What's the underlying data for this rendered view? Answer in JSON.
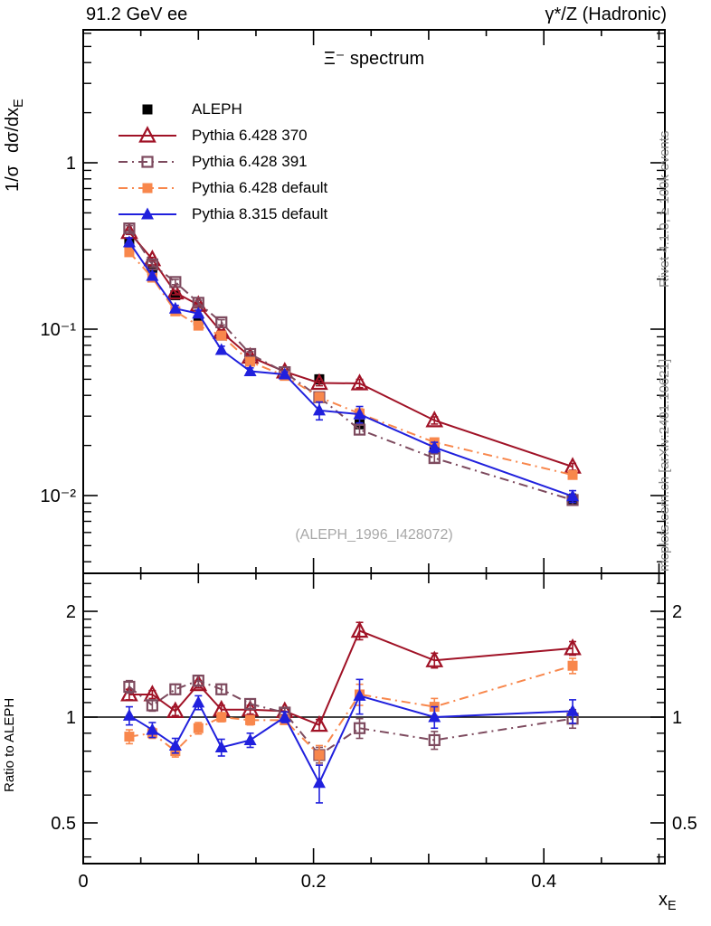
{
  "header": {
    "left": "91.2 GeV ee",
    "right": "γ*/Z (Hadronic)"
  },
  "side_texts": {
    "top_right": "Rivet 4.1.0, ≥ 100k events",
    "bottom_right": "mcplots.cern.ch [arXiv:2401.10621]"
  },
  "watermark": "(ALEPH_1996_I428072)",
  "chart_data": {
    "type": "line",
    "title": "Ξ⁻ spectrum",
    "ylabel": {
      "part1": "1/σ",
      "part2": "dσ/dx",
      "sub": "E"
    },
    "xlabel": {
      "part": "x",
      "sub": "E"
    },
    "ratio_label": "Ratio to ALEPH",
    "y_scale": "log",
    "x_range": [
      0,
      0.505
    ],
    "y_range_main": [
      0.0035,
      6.3
    ],
    "ratio_range": [
      0.42,
      2.6
    ],
    "grid": false,
    "legend_position": "top-left",
    "reference_line": 1,
    "x": [
      0.04,
      0.06,
      0.08,
      0.1,
      0.12,
      0.145,
      0.175,
      0.205,
      0.24,
      0.305,
      0.425
    ],
    "xticks": {
      "labels": [
        "0",
        "0.2",
        "0.4"
      ],
      "values": [
        0,
        0.2,
        0.4
      ],
      "minor_step": 0.05
    },
    "yticks_main": {
      "labels": [
        "1",
        "10⁻¹",
        "10⁻²"
      ],
      "values": [
        1,
        0.1,
        0.01
      ]
    },
    "yticks_ratio": {
      "labels": [
        "2",
        "1",
        "0.5"
      ],
      "values": [
        2,
        1,
        0.5
      ],
      "minor": [
        2.4,
        2.2,
        1.9,
        1.8,
        1.7,
        1.6,
        1.5,
        1.4,
        1.3,
        1.2,
        1.1,
        0.9,
        0.8,
        0.7,
        0.6,
        0.45,
        0.4
      ]
    },
    "series": [
      {
        "name": "ALEPH",
        "role": "data",
        "color": "#000000",
        "marker": "square-filled",
        "line": "none",
        "y": [
          0.33,
          0.227,
          0.16,
          0.113,
          0.0915,
          0.065,
          0.0535,
          0.05,
          0.0268,
          0.0195,
          0.0095
        ],
        "yerr": [
          0.015,
          0.01,
          0.008,
          0.006,
          0.005,
          0.0035,
          0.003,
          0.003,
          0.0015,
          0.0012,
          0.0007
        ]
      },
      {
        "name": "Pythia 6.428 370",
        "role": "mc",
        "color": "#a01226",
        "marker": "triangle-open",
        "line": "solid",
        "y": [
          0.383,
          0.263,
          0.166,
          0.14,
          0.0961,
          0.0683,
          0.0556,
          0.0475,
          0.0472,
          0.0283,
          0.0149
        ],
        "yerr": [
          0.012,
          0.007,
          0.005,
          0.004,
          0.003,
          0.002,
          0.0014,
          0.0018,
          0.0027,
          0.0014,
          0.0007
        ],
        "ratio": [
          1.16,
          1.16,
          1.04,
          1.24,
          1.05,
          1.05,
          1.04,
          0.95,
          1.76,
          1.45,
          1.57
        ],
        "ratio_err": [
          0.04,
          0.03,
          0.03,
          0.03,
          0.03,
          0.03,
          0.025,
          0.035,
          0.1,
          0.07,
          0.07
        ]
      },
      {
        "name": "Pythia 6.428 391",
        "role": "mc",
        "color": "#7d4a5e",
        "marker": "square-open",
        "line": "dashdot",
        "y": [
          0.403,
          0.245,
          0.192,
          0.144,
          0.11,
          0.0709,
          0.0551,
          0.039,
          0.0249,
          0.0168,
          0.0094
        ],
        "yerr": [
          0.016,
          0.009,
          0.007,
          0.005,
          0.004,
          0.0023,
          0.0016,
          0.002,
          0.0016,
          0.001,
          0.0006
        ],
        "ratio": [
          1.22,
          1.08,
          1.2,
          1.27,
          1.2,
          1.09,
          1.03,
          0.78,
          0.93,
          0.86,
          0.99
        ],
        "ratio_err": [
          0.05,
          0.04,
          0.04,
          0.045,
          0.04,
          0.035,
          0.03,
          0.04,
          0.06,
          0.05,
          0.06
        ]
      },
      {
        "name": "Pythia 6.428 default",
        "role": "mc",
        "color": "#f8874c",
        "marker": "square-filled",
        "line": "dashdot",
        "y": [
          0.29,
          0.204,
          0.128,
          0.105,
          0.0915,
          0.0637,
          0.0524,
          0.039,
          0.0311,
          0.0209,
          0.0133
        ],
        "yerr": [
          0.013,
          0.007,
          0.005,
          0.004,
          0.003,
          0.002,
          0.0014,
          0.0025,
          0.0021,
          0.0012,
          0.0007
        ],
        "ratio": [
          0.88,
          0.9,
          0.8,
          0.93,
          1.0,
          0.98,
          0.98,
          0.78,
          1.16,
          1.07,
          1.4
        ],
        "ratio_err": [
          0.04,
          0.03,
          0.03,
          0.035,
          0.03,
          0.03,
          0.025,
          0.05,
          0.08,
          0.06,
          0.07
        ]
      },
      {
        "name": "Pythia 8.315 default",
        "role": "mc",
        "color": "#2020dd",
        "marker": "triangle-filled",
        "line": "solid",
        "y": [
          0.333,
          0.209,
          0.133,
          0.124,
          0.075,
          0.0559,
          0.0535,
          0.0325,
          0.0308,
          0.0195,
          0.0099
        ],
        "yerr": [
          0.02,
          0.01,
          0.006,
          0.006,
          0.004,
          0.0026,
          0.0019,
          0.004,
          0.0035,
          0.0014,
          0.0008
        ],
        "ratio": [
          1.01,
          0.92,
          0.83,
          1.1,
          0.82,
          0.86,
          1.0,
          0.65,
          1.15,
          1.0,
          1.04
        ],
        "ratio_err": [
          0.06,
          0.045,
          0.04,
          0.05,
          0.045,
          0.04,
          0.035,
          0.08,
          0.13,
          0.07,
          0.08
        ]
      }
    ]
  }
}
